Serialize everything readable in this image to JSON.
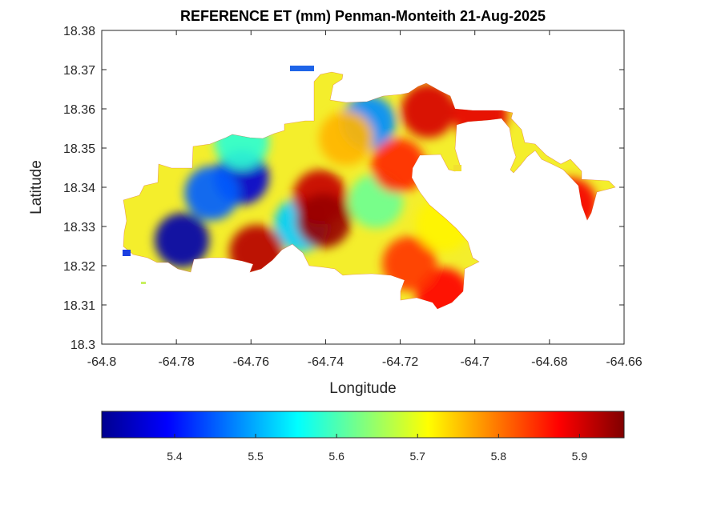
{
  "title": "REFERENCE ET (mm) Penman-Monteith 21-Aug-2025",
  "xlabel": "Longitude",
  "ylabel": "Latitude",
  "chart_data": {
    "type": "heatmap",
    "title": "REFERENCE ET (mm) Penman-Monteith 21-Aug-2025",
    "xlabel": "Longitude",
    "ylabel": "Latitude",
    "xlim": [
      -64.8,
      -64.66
    ],
    "ylim": [
      18.3,
      18.38
    ],
    "xticks": [
      "-64.8",
      "-64.78",
      "-64.76",
      "-64.74",
      "-64.72",
      "-64.7",
      "-64.68",
      "-64.66"
    ],
    "yticks": [
      "18.3",
      "18.31",
      "18.32",
      "18.33",
      "18.34",
      "18.35",
      "18.36",
      "18.37",
      "18.38"
    ],
    "colormap": "jet",
    "colorbar": {
      "orientation": "horizontal",
      "location": "below",
      "range": [
        5.31,
        5.955
      ],
      "ticks": [
        "5.4",
        "5.5",
        "5.6",
        "5.7",
        "5.8",
        "5.9"
      ]
    },
    "grid": false,
    "hotspots": [
      {
        "lon": -64.7625,
        "lat": 18.3425,
        "et": 5.36
      },
      {
        "lon": -64.7785,
        "lat": 18.3265,
        "et": 5.33
      },
      {
        "lon": -64.7705,
        "lat": 18.3385,
        "et": 5.45
      },
      {
        "lon": -64.7285,
        "lat": 18.3565,
        "et": 5.48
      },
      {
        "lon": -64.7625,
        "lat": 18.3515,
        "et": 5.58
      },
      {
        "lon": -64.7465,
        "lat": 18.3305,
        "et": 5.52
      },
      {
        "lon": -64.7265,
        "lat": 18.3365,
        "et": 5.62
      },
      {
        "lon": -64.7415,
        "lat": 18.3375,
        "et": 5.91
      },
      {
        "lon": -64.7405,
        "lat": 18.3315,
        "et": 5.94
      },
      {
        "lon": -64.7585,
        "lat": 18.3235,
        "et": 5.92
      },
      {
        "lon": -64.7205,
        "lat": 18.3455,
        "et": 5.85
      },
      {
        "lon": -64.7125,
        "lat": 18.3595,
        "et": 5.9
      },
      {
        "lon": -64.6985,
        "lat": 18.3585,
        "et": 5.89
      },
      {
        "lon": -64.6745,
        "lat": 18.3355,
        "et": 5.88
      },
      {
        "lon": -64.7085,
        "lat": 18.3125,
        "et": 5.87
      },
      {
        "lon": -64.7175,
        "lat": 18.3205,
        "et": 5.84
      },
      {
        "lon": -64.7345,
        "lat": 18.3525,
        "et": 5.76
      },
      {
        "lon": -64.7085,
        "lat": 18.3305,
        "et": 5.72
      }
    ]
  }
}
